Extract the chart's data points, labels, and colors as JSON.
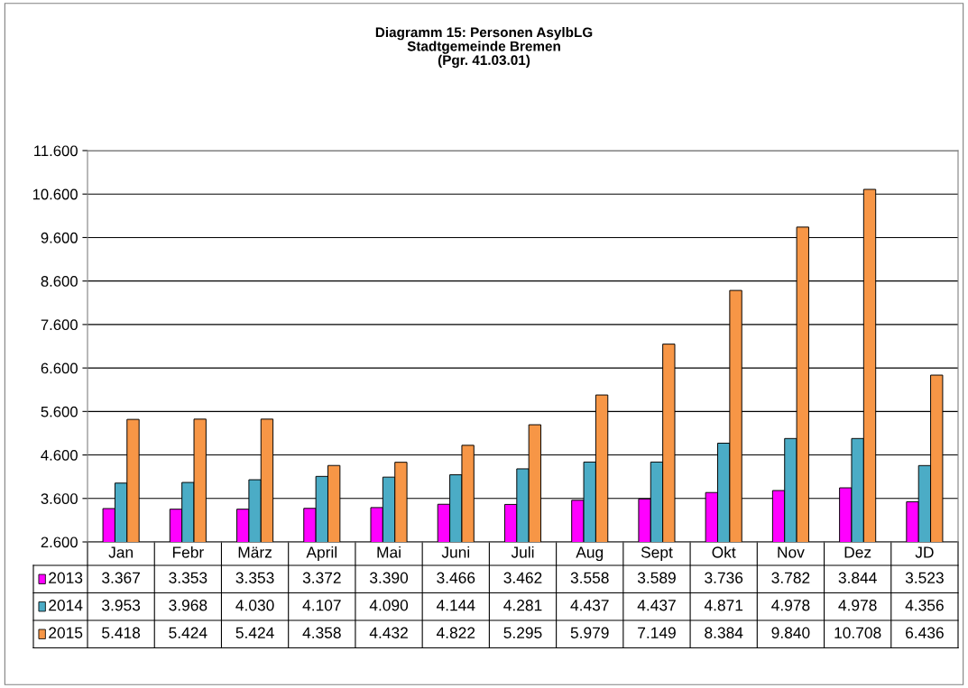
{
  "chart_data": {
    "type": "bar",
    "title": "Diagramm 15: Personen AsylbLG\nStadtgemeinde Bremen\n(Pgr. 41.03.01)",
    "categories": [
      "Jan",
      "Febr",
      "März",
      "April",
      "Mai",
      "Juni",
      "Juli",
      "Aug",
      "Sept",
      "Okt",
      "Nov",
      "Dez",
      "JD"
    ],
    "series": [
      {
        "name": "2013",
        "color": "#ff00ff",
        "values": [
          3367,
          3353,
          3353,
          3372,
          3390,
          3466,
          3462,
          3558,
          3589,
          3736,
          3782,
          3844,
          3523
        ],
        "value_labels": [
          "3.367",
          "3.353",
          "3.353",
          "3.372",
          "3.390",
          "3.466",
          "3.462",
          "3.558",
          "3.589",
          "3.736",
          "3.782",
          "3.844",
          "3.523"
        ]
      },
      {
        "name": "2014",
        "color": "#4bacc6",
        "values": [
          3953,
          3968,
          4030,
          4107,
          4090,
          4144,
          4281,
          4437,
          4437,
          4871,
          4978,
          4978,
          4356
        ],
        "value_labels": [
          "3.953",
          "3.968",
          "4.030",
          "4.107",
          "4.090",
          "4.144",
          "4.281",
          "4.437",
          "4.437",
          "4.871",
          "4.978",
          "4.978",
          "4.356"
        ]
      },
      {
        "name": "2015",
        "color": "#f79646",
        "values": [
          5418,
          5424,
          5424,
          4358,
          4432,
          4822,
          5295,
          5979,
          7149,
          8384,
          9840,
          10708,
          6436
        ],
        "value_labels": [
          "5.418",
          "5.424",
          "5.424",
          "4.358",
          "4.432",
          "4.822",
          "5.295",
          "5.979",
          "7.149",
          "8.384",
          "9.840",
          "10.708",
          "6.436"
        ]
      }
    ],
    "ylim": [
      2600,
      11600
    ],
    "yticks": [
      {
        "value": 2600,
        "label": "2.600"
      },
      {
        "value": 3600,
        "label": "3.600"
      },
      {
        "value": 4600,
        "label": "4.600"
      },
      {
        "value": 5600,
        "label": "5.600"
      },
      {
        "value": 6600,
        "label": "6.600"
      },
      {
        "value": 7600,
        "label": "7.600"
      },
      {
        "value": 8600,
        "label": "8.600"
      },
      {
        "value": 9600,
        "label": "9.600"
      },
      {
        "value": 10600,
        "label": "10.600"
      },
      {
        "value": 11600,
        "label": "11.600"
      }
    ],
    "grid": "y",
    "legend": "bottom"
  }
}
